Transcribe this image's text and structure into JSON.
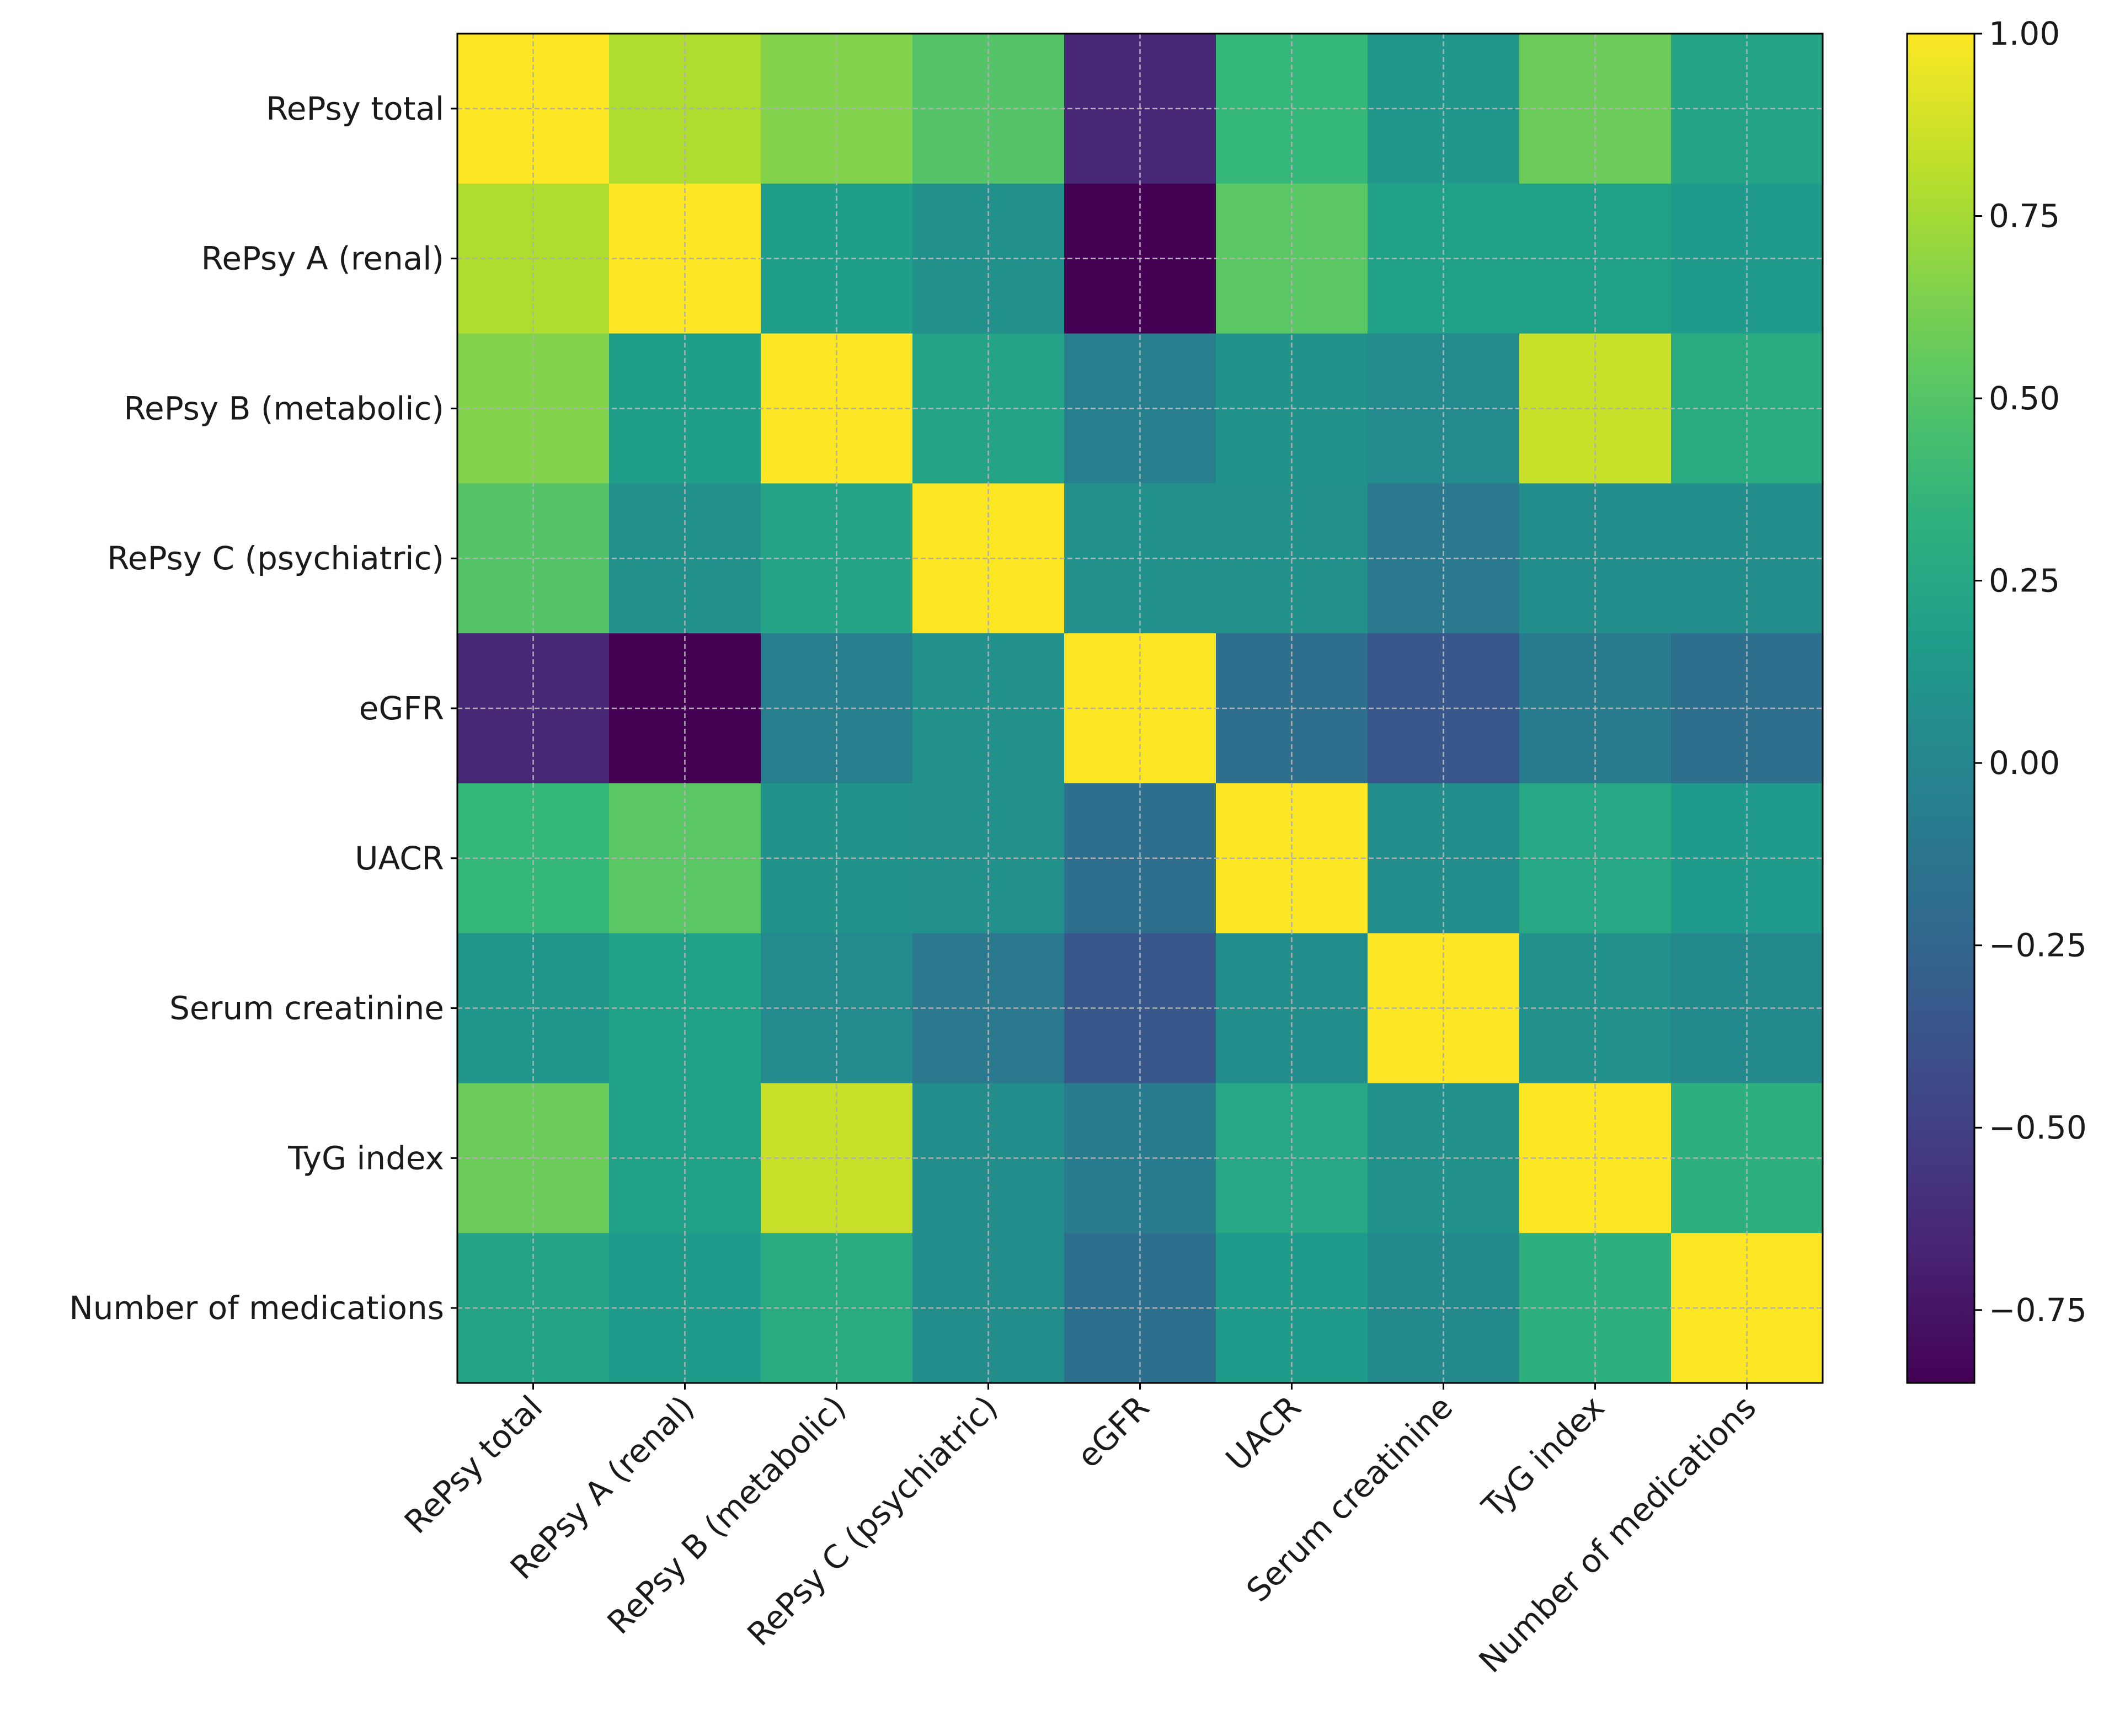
{
  "chart_data": {
    "type": "heatmap",
    "title": "",
    "labels": [
      "RePsy total",
      "RePsy A (renal)",
      "RePsy B (metabolic)",
      "RePsy C (psychiatric)",
      "eGFR",
      "UACR",
      "Serum creatinine",
      "TyG index",
      "Number of medications"
    ],
    "values": [
      [
        1.0,
        0.78,
        0.65,
        0.5,
        -0.65,
        0.38,
        0.12,
        0.58,
        0.22
      ],
      [
        0.78,
        1.0,
        0.18,
        0.08,
        -0.85,
        0.52,
        0.2,
        0.2,
        0.15
      ],
      [
        0.65,
        0.18,
        1.0,
        0.22,
        -0.05,
        0.1,
        0.03,
        0.85,
        0.28
      ],
      [
        0.5,
        0.08,
        0.22,
        1.0,
        0.08,
        0.08,
        -0.1,
        0.05,
        0.05
      ],
      [
        -0.65,
        -0.85,
        -0.05,
        0.08,
        1.0,
        -0.18,
        -0.35,
        -0.08,
        -0.18
      ],
      [
        0.38,
        0.52,
        0.1,
        0.08,
        -0.18,
        1.0,
        0.05,
        0.25,
        0.15
      ],
      [
        0.12,
        0.2,
        0.03,
        -0.1,
        -0.35,
        0.05,
        1.0,
        0.08,
        0.02
      ],
      [
        0.58,
        0.2,
        0.85,
        0.05,
        -0.08,
        0.25,
        0.08,
        1.0,
        0.32
      ],
      [
        0.22,
        0.15,
        0.28,
        0.05,
        -0.18,
        0.15,
        0.02,
        0.32,
        1.0
      ]
    ],
    "colormap": "viridis",
    "vmin": -0.85,
    "vmax": 1.0,
    "colorbar_ticks": [
      1.0,
      0.75,
      0.5,
      0.25,
      0.0,
      -0.25,
      -0.5,
      -0.75
    ],
    "colorbar_tick_labels": [
      "1.00",
      "0.75",
      "0.50",
      "0.25",
      "0.00",
      "−0.25",
      "−0.50",
      "−0.75"
    ],
    "grid": true,
    "legend": "colorbar-right"
  }
}
